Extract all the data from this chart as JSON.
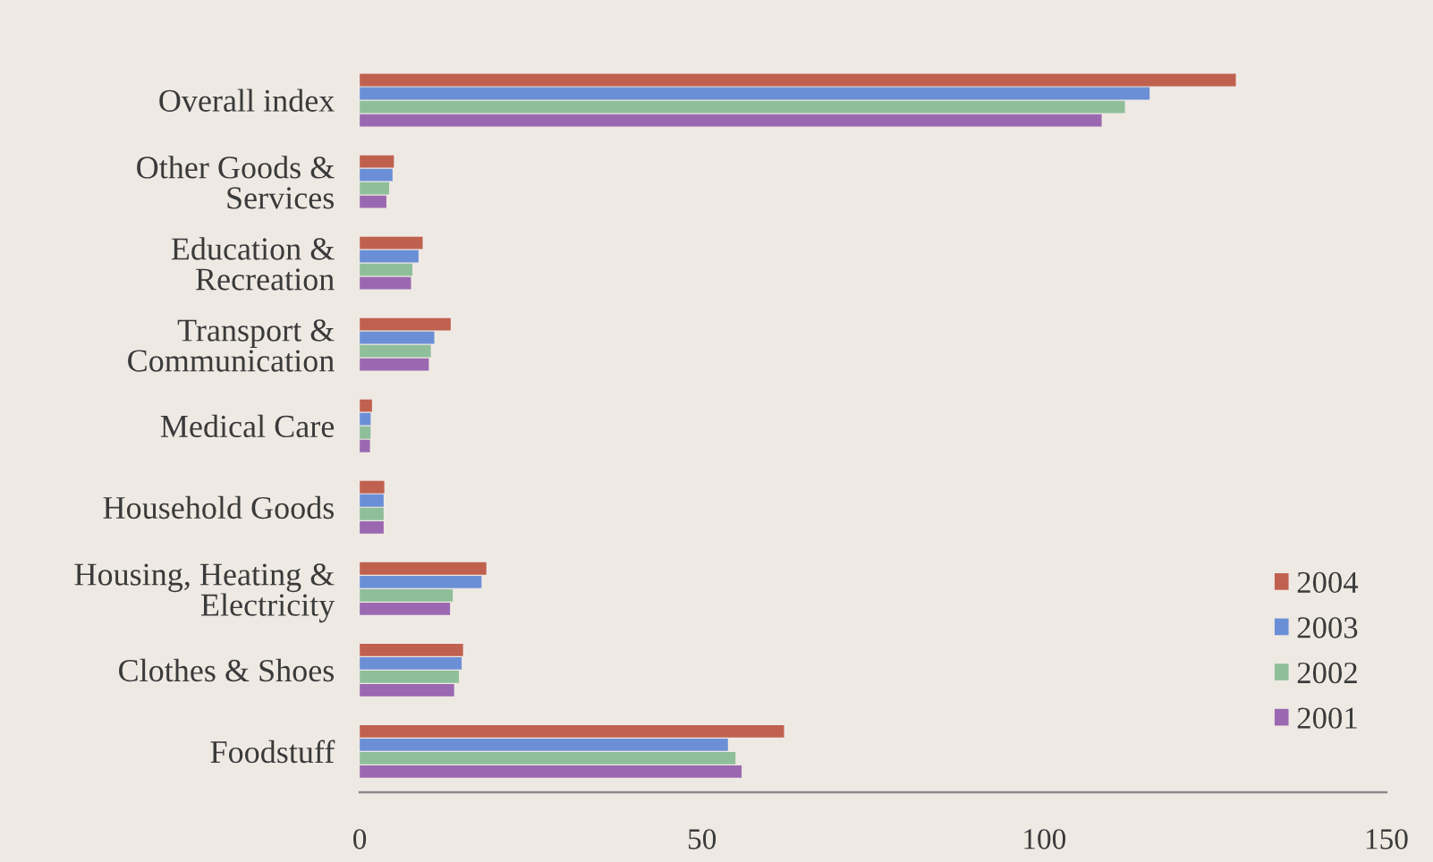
{
  "chart_data": {
    "type": "bar",
    "orientation": "horizontal",
    "categories": [
      "Overall index",
      "Other Goods &\nServices",
      "Education &\nRecreation",
      "Transport &\nCommunication",
      "Medical Care",
      "Household Goods",
      "Housing, Heating &\nElectricity",
      "Clothes & Shoes",
      "Foodstuff"
    ],
    "series": [
      {
        "name": "2004",
        "color": "#c0614f",
        "values": [
          128.0,
          5.0,
          9.2,
          13.3,
          1.8,
          3.6,
          18.5,
          15.1,
          62.0
        ]
      },
      {
        "name": "2003",
        "color": "#6b8fd6",
        "values": [
          115.4,
          4.8,
          8.6,
          10.9,
          1.6,
          3.5,
          17.8,
          14.9,
          53.8
        ]
      },
      {
        "name": "2002",
        "color": "#8fbf9a",
        "values": [
          111.8,
          4.3,
          7.7,
          10.4,
          1.6,
          3.5,
          13.6,
          14.5,
          54.9
        ]
      },
      {
        "name": "2001",
        "color": "#9a68b0",
        "values": [
          108.4,
          3.9,
          7.5,
          10.1,
          1.5,
          3.5,
          13.2,
          13.8,
          55.8
        ]
      }
    ],
    "xlim": [
      0,
      150
    ],
    "xticks": [
      0,
      50,
      100,
      150
    ],
    "grid": false,
    "legend": "bottom right"
  }
}
